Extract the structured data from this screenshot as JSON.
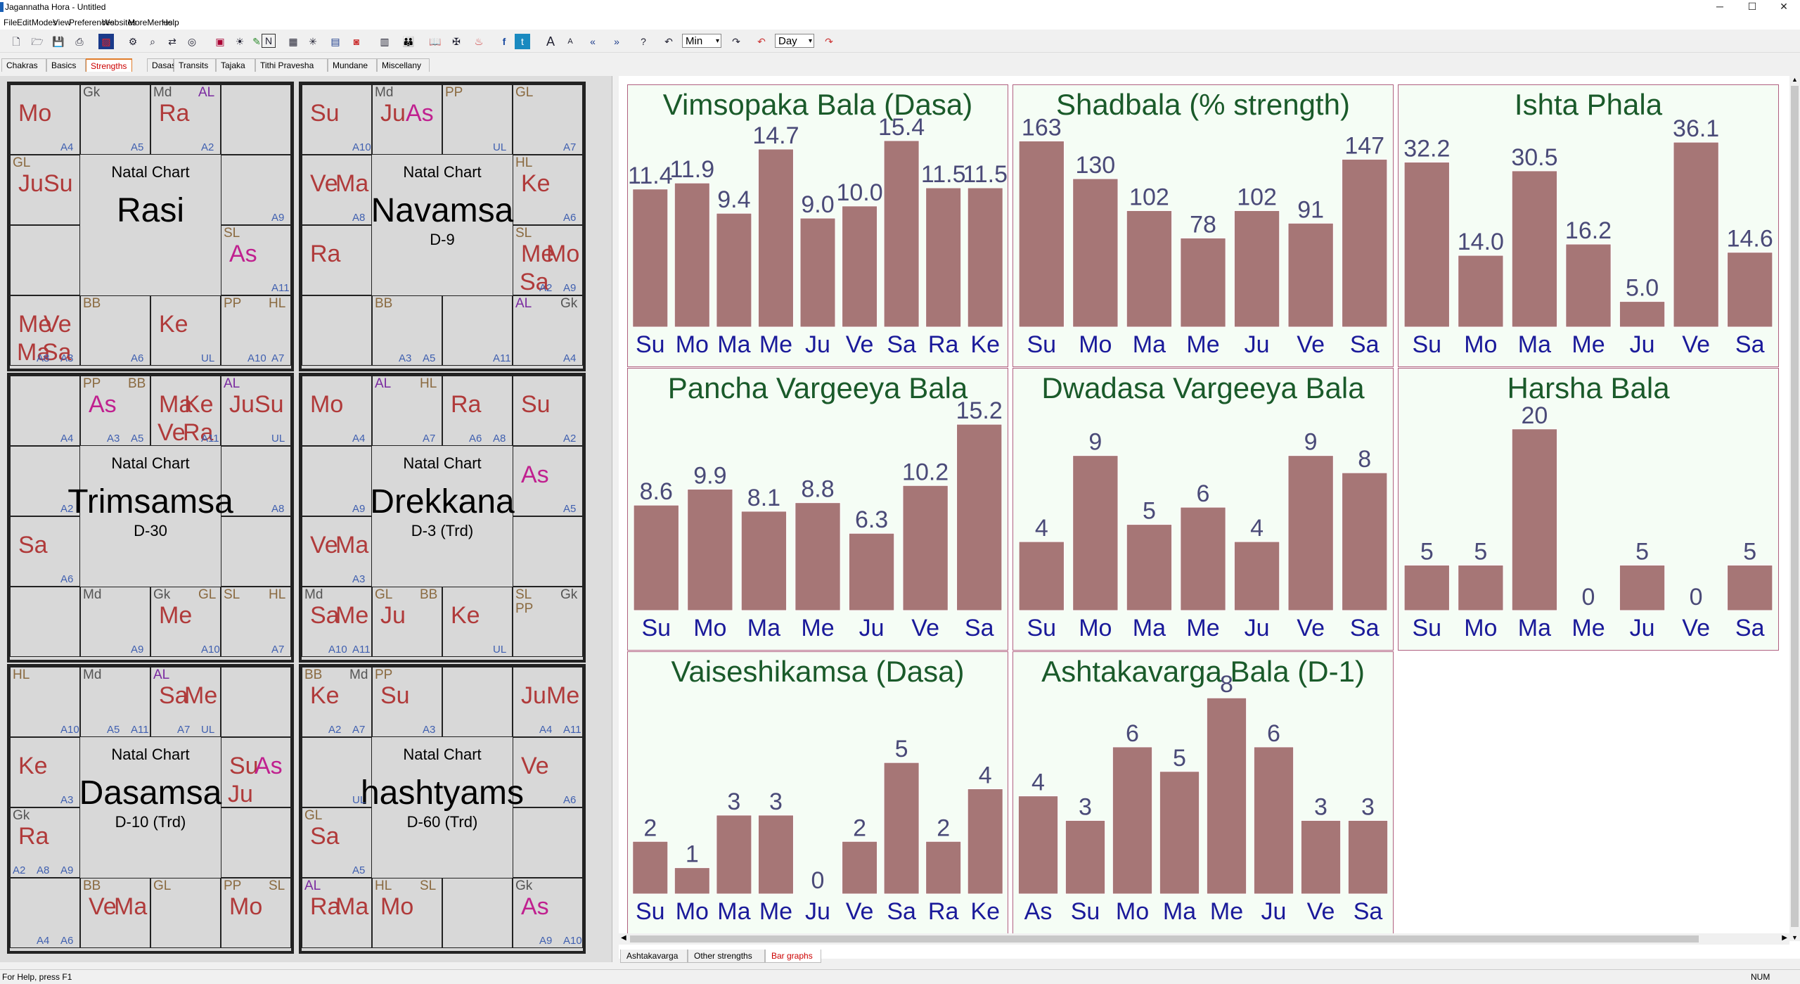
{
  "window": {
    "title": "Jagannatha Hora - Untitled",
    "min": "─",
    "max": "☐",
    "close": "✕"
  },
  "menu": [
    "File",
    "Edit",
    "Modes",
    "View",
    "Preferences",
    "Websites",
    "MoreMenus",
    "Help"
  ],
  "toolbar": {
    "dropdown1": "Min",
    "dropdown2": "Day"
  },
  "top_tabs": [
    "Chakras",
    "Basics",
    "Strengths",
    "Dasas",
    "Transits",
    "Tajaka",
    "Tithi Pravesha",
    "Mundane",
    "Miscellany"
  ],
  "top_tabs_selected": 2,
  "charts": [
    {
      "natal": "Natal Chart",
      "name": "Rasi",
      "sub": "",
      "planets": [
        [
          "Mo",
          0
        ],
        [
          "Ra",
          2
        ],
        [
          "Ju",
          4
        ],
        [
          "Su",
          4
        ],
        [
          "As",
          7
        ],
        [
          "Me",
          8
        ],
        [
          "Ve",
          8
        ],
        [
          "Ma",
          8
        ],
        [
          "Sa",
          8
        ],
        [
          "Ke",
          10
        ]
      ],
      "upa": [
        [
          "Gk",
          1,
          "g"
        ],
        [
          "Md",
          2,
          "g"
        ],
        [
          "AL",
          2,
          "v"
        ],
        [
          "GL",
          4,
          "y"
        ],
        [
          "SL",
          7,
          "y"
        ],
        [
          "PP",
          11,
          "y"
        ],
        [
          "HL",
          11,
          "y"
        ],
        [
          "BB",
          9,
          "y"
        ]
      ],
      "arudha": [
        [
          "A4",
          0
        ],
        [
          "A5",
          1
        ],
        [
          "A2",
          2
        ],
        [
          "A9",
          5
        ],
        [
          "A11",
          7
        ],
        [
          "A3",
          8
        ],
        [
          "A8",
          8
        ],
        [
          "A7",
          11
        ],
        [
          "UL",
          10
        ],
        [
          "A6",
          9
        ],
        [
          "A10",
          12
        ]
      ]
    },
    {
      "natal": "Natal Chart",
      "name": "Navamsa",
      "sub": "D-9",
      "planets": [
        [
          "Su",
          0
        ],
        [
          "Ju",
          1
        ],
        [
          "As",
          1
        ],
        [
          "Ve",
          4
        ],
        [
          "Ma",
          4
        ],
        [
          "Ke",
          5
        ],
        [
          "Ra",
          6
        ],
        [
          "Me",
          7
        ],
        [
          "Mo",
          7
        ],
        [
          "Sa",
          7
        ]
      ],
      "upa": [
        [
          "Md",
          1,
          "g"
        ],
        [
          "PP",
          2,
          "y"
        ],
        [
          "GL",
          3,
          "y"
        ],
        [
          "HL",
          5,
          "y"
        ],
        [
          "SL",
          7,
          "y"
        ],
        [
          "AL",
          11,
          "v"
        ],
        [
          "Gk",
          11,
          "g"
        ],
        [
          "BB",
          9,
          "y"
        ]
      ],
      "arudha": [
        [
          "A10",
          0
        ],
        [
          "UL",
          2
        ],
        [
          "A7",
          3
        ],
        [
          "A8",
          4
        ],
        [
          "A6",
          5
        ],
        [
          "A9",
          7
        ],
        [
          "A2",
          7
        ],
        [
          "A11",
          10
        ],
        [
          "A5",
          9
        ],
        [
          "A3",
          9
        ],
        [
          "A4",
          12
        ]
      ]
    },
    {
      "natal": "Natal Chart",
      "name": "Trimsamsa",
      "sub": "D-30",
      "planets": [
        [
          "As",
          1
        ],
        [
          "Ma",
          2
        ],
        [
          "Ke",
          2
        ],
        [
          "Ve",
          2
        ],
        [
          "Ra",
          2
        ],
        [
          "Ju",
          3
        ],
        [
          "Su",
          3
        ],
        [
          "Sa",
          6
        ],
        [
          "Me",
          10
        ]
      ],
      "upa": [
        [
          "PP",
          1,
          "y"
        ],
        [
          "BB",
          1,
          "y"
        ],
        [
          "AL",
          3,
          "v"
        ],
        [
          "SL",
          11,
          "y"
        ],
        [
          "HL",
          11,
          "y"
        ],
        [
          "Gk",
          10,
          "g"
        ],
        [
          "GL",
          10,
          "y"
        ],
        [
          "Md",
          9,
          "g"
        ]
      ],
      "arudha": [
        [
          "A4",
          0
        ],
        [
          "A5",
          1
        ],
        [
          "A3",
          1
        ],
        [
          "A11",
          2
        ],
        [
          "UL",
          3
        ],
        [
          "A2",
          4
        ],
        [
          "A6",
          6
        ],
        [
          "A8",
          5
        ],
        [
          "A7",
          11
        ],
        [
          "A10",
          10
        ],
        [
          "A9",
          9
        ]
      ]
    },
    {
      "natal": "Natal Chart",
      "name": "Drekkana",
      "sub": "D-3 (Trd)",
      "planets": [
        [
          "Mo",
          0
        ],
        [
          "Ra",
          2
        ],
        [
          "Su",
          3
        ],
        [
          "Ve",
          6
        ],
        [
          "Ma",
          6
        ],
        [
          "As",
          5
        ],
        [
          "Ke",
          10
        ],
        [
          "Ju",
          9
        ],
        [
          "Sa",
          8
        ],
        [
          "Me",
          8
        ]
      ],
      "upa": [
        [
          "AL",
          1,
          "v"
        ],
        [
          "HL",
          1,
          "y"
        ],
        [
          "SL",
          11,
          "y"
        ],
        [
          "Gk",
          11,
          "g"
        ],
        [
          "PP",
          11,
          "y"
        ],
        [
          "GL",
          9,
          "y"
        ],
        [
          "BB",
          9,
          "y"
        ],
        [
          "Md",
          8,
          "g"
        ]
      ],
      "arudha": [
        [
          "A4",
          0
        ],
        [
          "A7",
          1
        ],
        [
          "A8",
          2
        ],
        [
          "A6",
          2
        ],
        [
          "A2",
          3
        ],
        [
          "A9",
          4
        ],
        [
          "A3",
          6
        ],
        [
          "A5",
          5
        ],
        [
          "UL",
          10
        ],
        [
          "A11",
          8
        ],
        [
          "A10",
          8
        ]
      ]
    },
    {
      "natal": "Natal Chart",
      "name": "Dasamsa",
      "sub": "D-10 (Trd)",
      "planets": [
        [
          "Sa",
          2
        ],
        [
          "Me",
          2
        ],
        [
          "Ke",
          4
        ],
        [
          "Ra",
          6
        ],
        [
          "Su",
          5
        ],
        [
          "As",
          5
        ],
        [
          "Ju",
          5
        ],
        [
          "Mo",
          11
        ],
        [
          "Ve",
          9
        ],
        [
          "Ma",
          9
        ]
      ],
      "upa": [
        [
          "HL",
          0,
          "y"
        ],
        [
          "Md",
          1,
          "g"
        ],
        [
          "AL",
          2,
          "v"
        ],
        [
          "Gk",
          6,
          "g"
        ],
        [
          "PP",
          11,
          "y"
        ],
        [
          "SL",
          11,
          "y"
        ],
        [
          "GL",
          10,
          "y"
        ],
        [
          "BB",
          9,
          "y"
        ]
      ],
      "arudha": [
        [
          "A10",
          0
        ],
        [
          "A11",
          1
        ],
        [
          "A5",
          1
        ],
        [
          "UL",
          2
        ],
        [
          "A7",
          2
        ],
        [
          "A3",
          4
        ],
        [
          "A9",
          6
        ],
        [
          "A8",
          6
        ],
        [
          "A2",
          6
        ],
        [
          "A6",
          8
        ],
        [
          "A4",
          8
        ]
      ]
    },
    {
      "natal": "Natal Chart",
      "name": "hashtyams",
      "sub": "D-60 (Trd)",
      "planets": [
        [
          "Ke",
          0
        ],
        [
          "Su",
          1
        ],
        [
          "Ju",
          3
        ],
        [
          "Me",
          3
        ],
        [
          "Sa",
          6
        ],
        [
          "Ve",
          5
        ],
        [
          "As",
          11
        ],
        [
          "Mo",
          9
        ],
        [
          "Ra",
          8
        ],
        [
          "Ma",
          8
        ]
      ],
      "upa": [
        [
          "BB",
          0,
          "y"
        ],
        [
          "Md",
          0,
          "g"
        ],
        [
          "PP",
          1,
          "y"
        ],
        [
          "GL",
          6,
          "y"
        ],
        [
          "Gk",
          11,
          "g"
        ],
        [
          "HL",
          9,
          "y"
        ],
        [
          "SL",
          9,
          "y"
        ],
        [
          "AL",
          8,
          "v"
        ]
      ],
      "arudha": [
        [
          "A7",
          0
        ],
        [
          "A2",
          0
        ],
        [
          "A3",
          1
        ],
        [
          "A11",
          3
        ],
        [
          "A4",
          3
        ],
        [
          "A5",
          6
        ],
        [
          "UL",
          4
        ],
        [
          "A6",
          5
        ],
        [
          "A10",
          11
        ],
        [
          "A9",
          11
        ]
      ]
    }
  ],
  "bar_charts": [
    {
      "title": "Vimsopaka Bala (Dasa)",
      "labels": [
        "Su",
        "Mo",
        "Ma",
        "Me",
        "Ju",
        "Ve",
        "Sa",
        "Ra",
        "Ke"
      ],
      "values": [
        11.4,
        11.9,
        9.4,
        14.7,
        9.0,
        10.0,
        15.4,
        11.5,
        11.5
      ],
      "value_labels": [
        "11.4",
        "11.9",
        "9.4",
        "14.7",
        "9.0",
        "10.0",
        "15.4",
        "11.5",
        "11.5"
      ],
      "ymax": 16.5
    },
    {
      "title": "Shadbala (% strength)",
      "labels": [
        "Su",
        "Mo",
        "Ma",
        "Me",
        "Ju",
        "Ve",
        "Sa"
      ],
      "values": [
        163,
        130,
        102,
        78,
        102,
        91,
        147
      ],
      "value_labels": [
        "163",
        "130",
        "102",
        "78",
        "102",
        "91",
        "147"
      ],
      "ymax": 175
    },
    {
      "title": "Ishta Phala",
      "labels": [
        "Su",
        "Mo",
        "Ma",
        "Me",
        "Ju",
        "Ve",
        "Sa"
      ],
      "values": [
        32.2,
        14.0,
        30.5,
        16.2,
        5.0,
        36.1,
        14.6
      ],
      "value_labels": [
        "32.2",
        "14.0",
        "30.5",
        "16.2",
        "5.0",
        "36.1",
        "14.6"
      ],
      "ymax": 39
    },
    {
      "title": "Pancha Vargeeya Bala",
      "labels": [
        "Su",
        "Mo",
        "Ma",
        "Me",
        "Ju",
        "Ve",
        "Sa"
      ],
      "values": [
        8.6,
        9.9,
        8.1,
        8.8,
        6.3,
        10.2,
        15.2
      ],
      "value_labels": [
        "8.6",
        "9.9",
        "8.1",
        "8.8",
        "6.3",
        "10.2",
        "15.2"
      ],
      "ymax": 16.3
    },
    {
      "title": "Dwadasa Vargeeya Bala",
      "labels": [
        "Su",
        "Mo",
        "Ma",
        "Me",
        "Ju",
        "Ve",
        "Sa"
      ],
      "values": [
        4,
        9,
        5,
        6,
        4,
        9,
        8
      ],
      "value_labels": [
        "4",
        "9",
        "5",
        "6",
        "4",
        "9",
        "8"
      ],
      "ymax": 11.6
    },
    {
      "title": "Harsha Bala",
      "labels": [
        "Su",
        "Mo",
        "Ma",
        "Me",
        "Ju",
        "Ve",
        "Sa"
      ],
      "values": [
        5,
        5,
        20,
        0,
        5,
        0,
        5
      ],
      "value_labels": [
        "5",
        "5",
        "20",
        "0",
        "5",
        "0",
        "5"
      ],
      "ymax": 22
    },
    {
      "title": "Vaiseshikamsa (Dasa)",
      "labels": [
        "Su",
        "Mo",
        "Ma",
        "Me",
        "Ju",
        "Ve",
        "Sa",
        "Ra",
        "Ke"
      ],
      "values": [
        2,
        1,
        3,
        3,
        0,
        2,
        5,
        2,
        4
      ],
      "value_labels": [
        "2",
        "1",
        "3",
        "3",
        "0",
        "2",
        "5",
        "2",
        "4"
      ],
      "ymax": 7.6
    },
    {
      "title": "Ashtakavarga Bala (D-1)",
      "labels": [
        "As",
        "Su",
        "Mo",
        "Ma",
        "Me",
        "Ju",
        "Ve",
        "Sa"
      ],
      "values": [
        4,
        3,
        6,
        5,
        8,
        6,
        3,
        3
      ],
      "value_labels": [
        "4",
        "3",
        "6",
        "5",
        "8",
        "6",
        "3",
        "3"
      ],
      "ymax": 8.15
    }
  ],
  "bottom_tabs": [
    "Ashtakavarga",
    "Other strengths",
    "Bar graphs"
  ],
  "bottom_tabs_selected": 2,
  "status": {
    "help": "For Help, press F1",
    "num": "NUM"
  },
  "colors": {
    "bar": "#a67676",
    "title": "#1a5a2a",
    "axis_label": "#1a1a9a",
    "value_label": "#4a4a78",
    "panel_bg": "#f5fdf5",
    "panel_border": "#b06080"
  }
}
